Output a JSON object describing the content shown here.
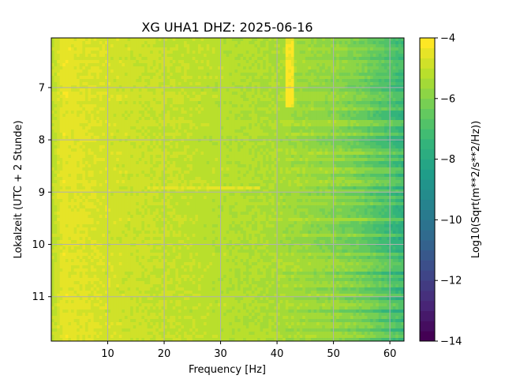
{
  "chart_data": {
    "type": "heatmap",
    "title": "XG UHA1  DHZ: 2025-06-16",
    "xlabel": "Frequency [Hz]",
    "ylabel": "Lokalzeit (UTC + 2 Stunde)",
    "xlim": [
      0.0,
      62.5
    ],
    "ylim": [
      11.85,
      6.05
    ],
    "x_ticks": [
      10,
      20,
      30,
      40,
      50,
      60
    ],
    "y_ticks": [
      7,
      8,
      9,
      10,
      11
    ],
    "grid": true,
    "colormap": "viridis",
    "colorbar": {
      "label": "Log10(Sqrt(m**2/s**2/Hz))",
      "range": [
        -14,
        -4
      ],
      "ticks": [
        -14,
        -12,
        -10,
        -8,
        -6,
        -4
      ],
      "levels": 30
    },
    "profile_by_frequency": {
      "frequency_hz": [
        0,
        2,
        5,
        10,
        20,
        30,
        40,
        45,
        50,
        55,
        60,
        62.5
      ],
      "log10_amplitude": [
        -5.2,
        -4.5,
        -4.6,
        -4.8,
        -5.0,
        -5.2,
        -5.4,
        -5.6,
        -5.8,
        -6.2,
        -6.9,
        -7.3
      ]
    },
    "features": [
      {
        "label": "narrow band ~42 Hz",
        "frequency_hz": 42.3,
        "time_start": 6.05,
        "time_end": 7.35,
        "log10_amplitude": -4.3
      },
      {
        "label": "line ~8.9",
        "time": 8.9,
        "frequency_start": 17,
        "frequency_end": 37,
        "log10_amplitude": -4.6
      },
      {
        "label": "high-frequency noise onset",
        "time": 7.35,
        "frequency_start": 38,
        "frequency_end": 62.5,
        "log10_amplitude": -5.3
      }
    ]
  }
}
